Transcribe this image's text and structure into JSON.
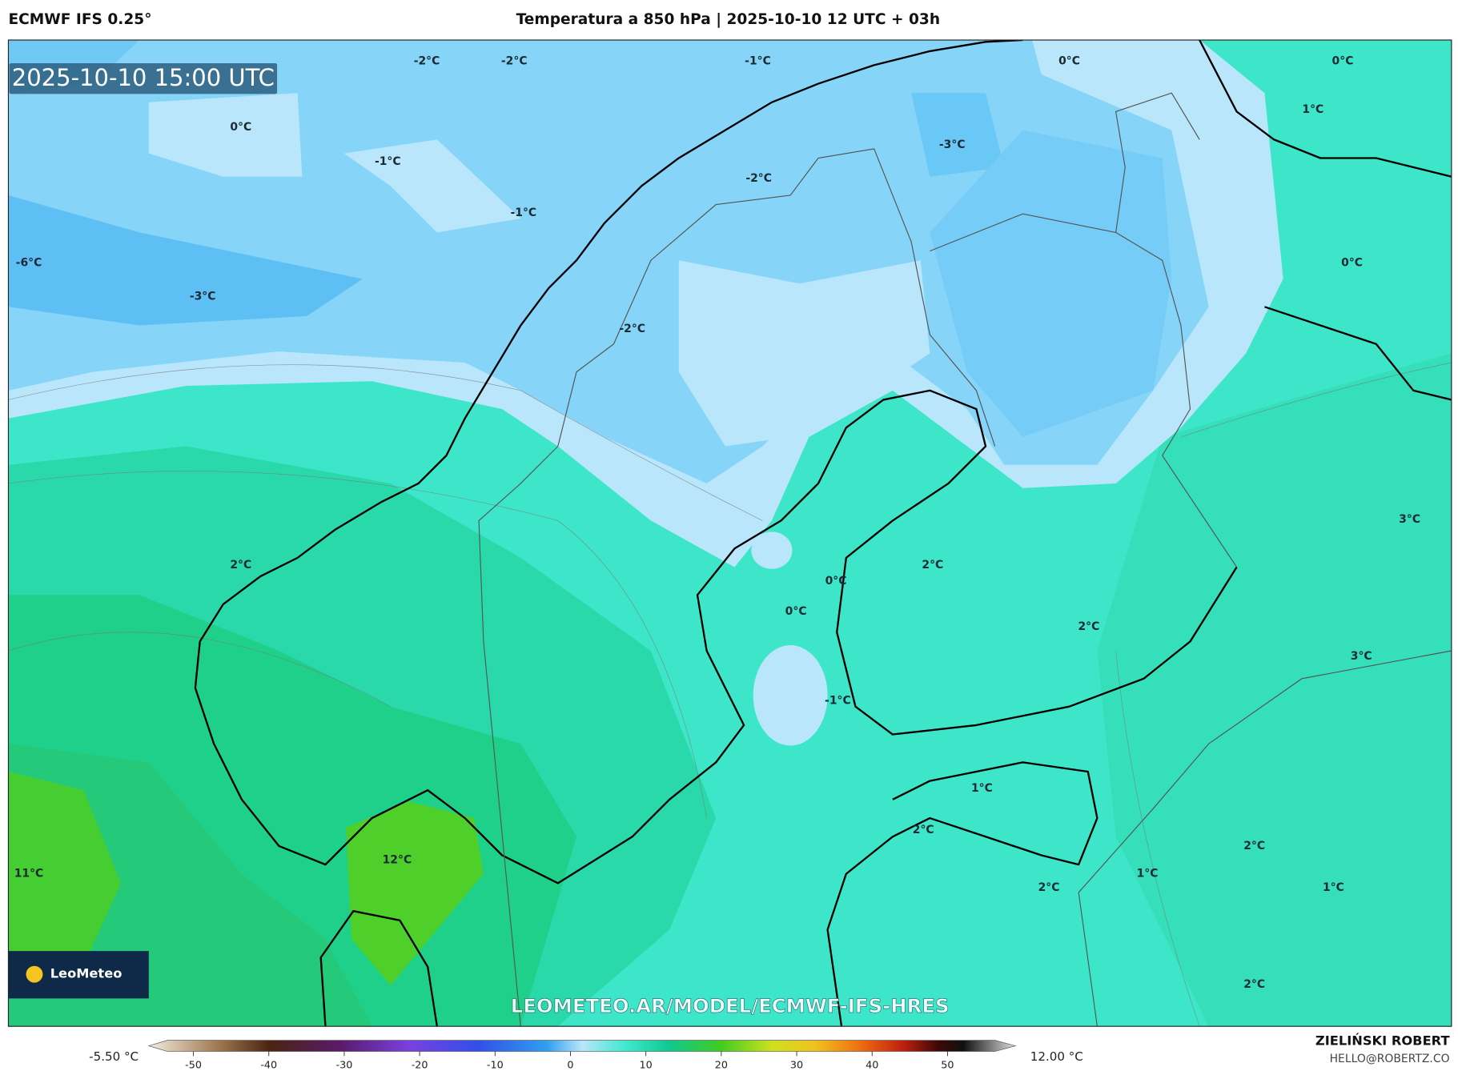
{
  "header": {
    "left": "ECMWF IFS 0.25°",
    "title": "Temperatura a 850 hPa | 2025-10-10 12 UTC + 03h"
  },
  "timestamp": "2025-10-10 15:00 UTC",
  "contour_labels": [
    "-2°C",
    "-2°C",
    "-1°C",
    "0°C",
    "0°C",
    "0°C",
    "-1°C",
    "-3°C",
    "1°C",
    "-2°C",
    "-1°C",
    "-6°C",
    "-3°C",
    "0°C",
    "-2°C",
    "3°C",
    "2°C",
    "2°C",
    "0°C",
    "0°C",
    "2°C",
    "3°C",
    "-1°C",
    "1°C",
    "2°C",
    "12°C",
    "11°C",
    "1°C",
    "2°C",
    "2°C",
    "1°C",
    "2°C"
  ],
  "logo": "LeoMeteo",
  "watermark": "LEOMETEO.AR/MODEL/ECMWF-IFS-HRES",
  "colorbar": {
    "min_label": "-5.50 °C",
    "max_label": "12.00 °C",
    "ticks": [
      -50,
      -40,
      -30,
      -20,
      -10,
      0,
      10,
      20,
      30,
      40,
      50
    ]
  },
  "credit": {
    "name": "ZIELIŃSKI ROBERT",
    "email": "HELLO@ROBERTZ.CO"
  }
}
